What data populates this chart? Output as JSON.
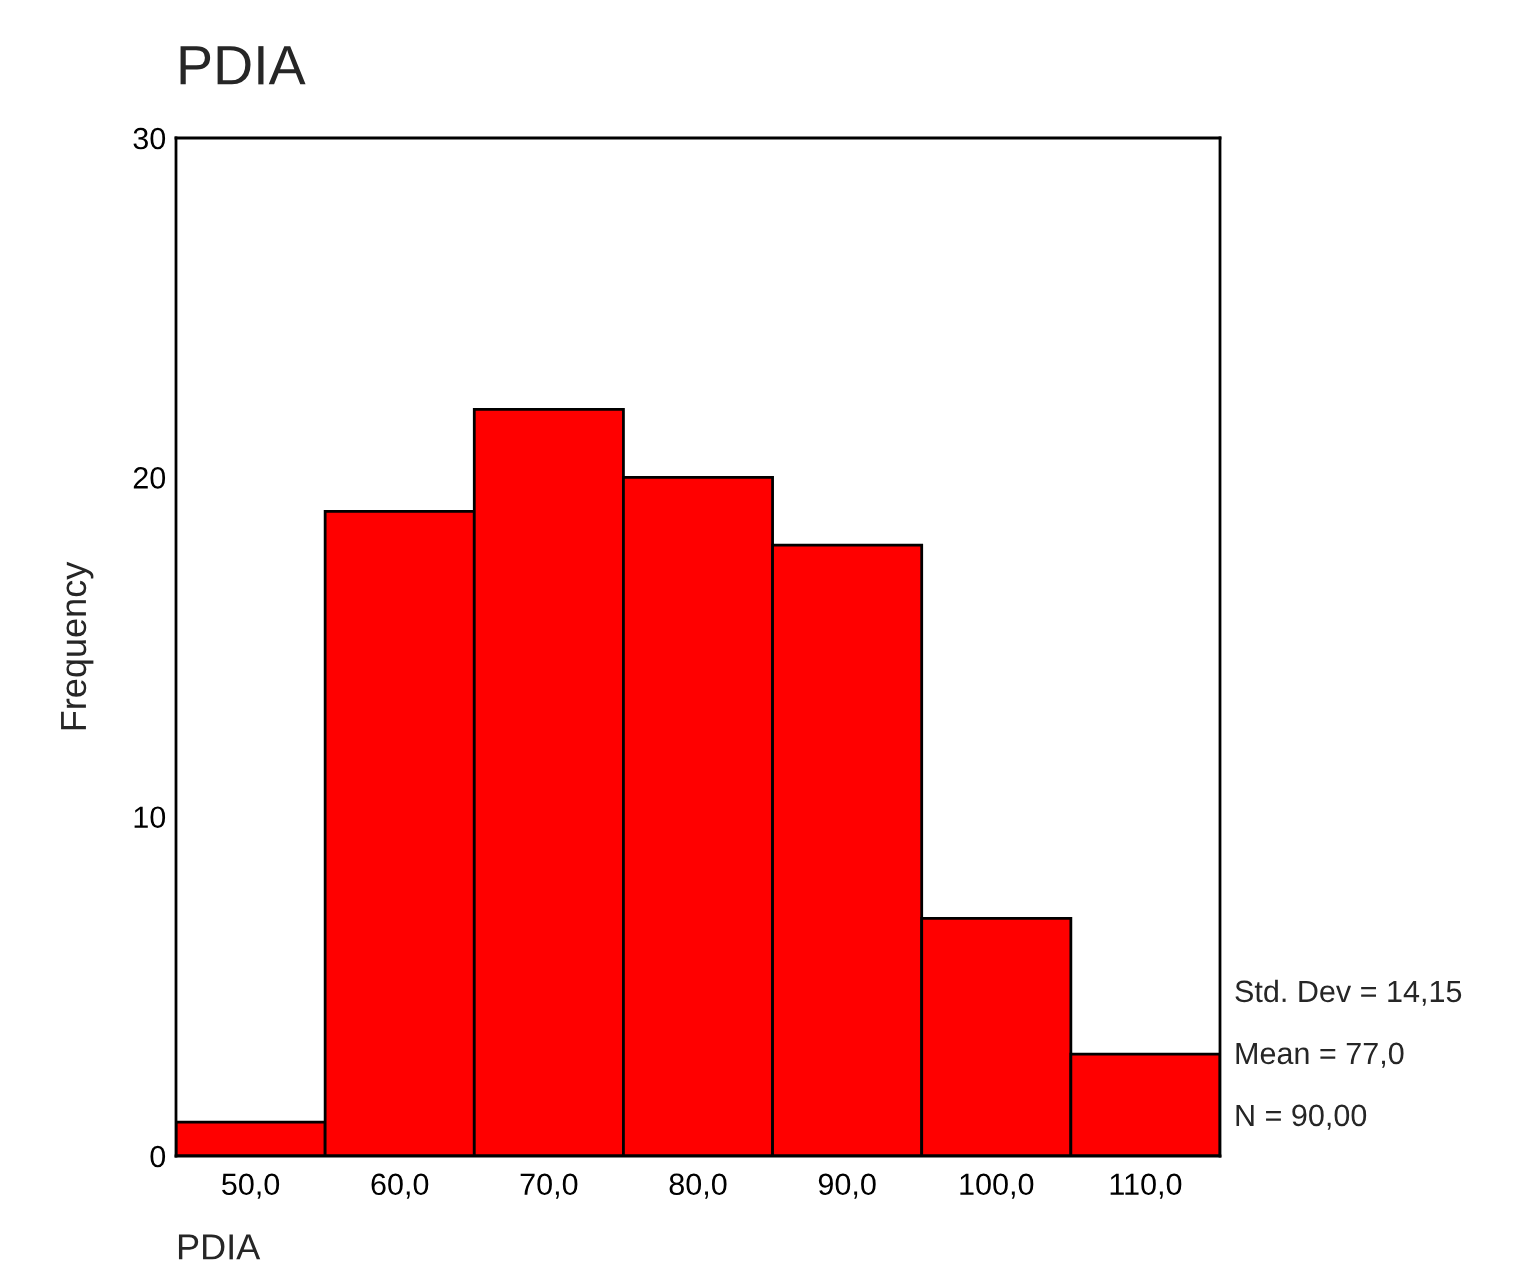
{
  "chart_data": {
    "type": "histogram",
    "title": "PDIA",
    "xlabel": "PDIA",
    "ylabel": "Frequency",
    "bins": [
      45,
      55,
      65,
      75,
      85,
      95,
      105,
      115
    ],
    "values": [
      1,
      19,
      22,
      20,
      18,
      7,
      3
    ],
    "color": "#ff0000",
    "xlim": [
      45,
      115
    ],
    "xticks": [
      {
        "value": 50,
        "label": "50,0"
      },
      {
        "value": 60,
        "label": "60,0"
      },
      {
        "value": 70,
        "label": "70,0"
      },
      {
        "value": 80,
        "label": "80,0"
      },
      {
        "value": 90,
        "label": "90,0"
      },
      {
        "value": 100,
        "label": "100,0"
      },
      {
        "value": 110,
        "label": "110,0"
      }
    ],
    "ylim": [
      0,
      30
    ],
    "yticks": [
      0,
      10,
      20,
      30
    ],
    "annotations": [
      "Std. Dev = 14,15",
      "Mean = 77,0",
      "N = 90,00"
    ],
    "grid": false,
    "legend": false
  }
}
